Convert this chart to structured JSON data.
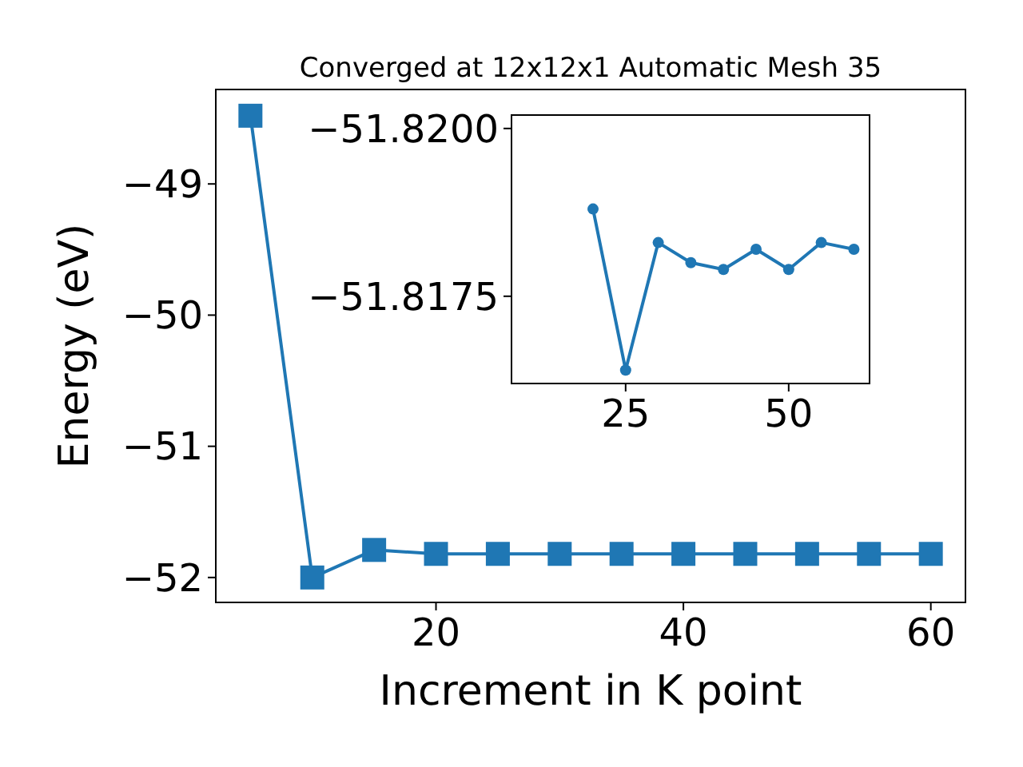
{
  "chart_data": [
    {
      "type": "line",
      "title": "Converged at 12x12x1 Automatic Mesh 35",
      "xlabel": "Increment in K point",
      "ylabel": "Energy (eV)",
      "x": [
        5,
        10,
        15,
        20,
        25,
        30,
        35,
        40,
        45,
        50,
        55,
        60
      ],
      "series": [
        {
          "color": "#1f77b4",
          "values": [
            -48.48,
            -52.0,
            -51.79,
            -51.82,
            -51.82,
            -51.82,
            -51.82,
            -51.82,
            -51.82,
            -51.82,
            -51.82,
            -51.82
          ]
        }
      ],
      "xlim": [
        2.2,
        62.8
      ],
      "ylim": [
        -52.19,
        -48.28
      ],
      "xticks": [
        20,
        40,
        60
      ],
      "yticks": [
        {
          "value": -49,
          "label": "−49"
        },
        {
          "value": -50,
          "label": "−50"
        },
        {
          "value": -51,
          "label": "−51"
        },
        {
          "value": -52,
          "label": "−52"
        }
      ],
      "marker": "square",
      "line_style": "solid",
      "grid": false
    },
    {
      "type": "line",
      "x": [
        20,
        25,
        30,
        35,
        40,
        45,
        50,
        55,
        60
      ],
      "series": [
        {
          "color": "#1f77b4",
          "values": [
            -51.8188,
            -51.8164,
            -51.8183,
            -51.818,
            -51.8179,
            -51.8182,
            -51.8179,
            -51.8183,
            -51.8182
          ]
        }
      ],
      "xlim": [
        7.5,
        62.4
      ],
      "ylim": [
        -51.8162,
        -51.8202
      ],
      "xticks": [
        25,
        50
      ],
      "yticks": [
        {
          "value": -51.82,
          "label": "−51.8200"
        },
        {
          "value": -51.8175,
          "label": "−51.8175"
        }
      ],
      "marker": "circle",
      "line_style": "solid",
      "grid": false
    }
  ]
}
